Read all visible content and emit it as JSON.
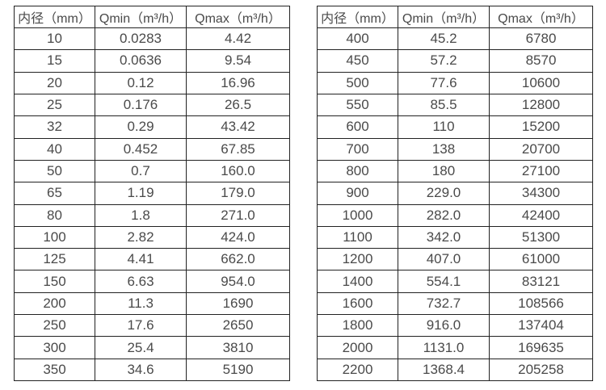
{
  "tables": [
    {
      "name": "flow-spec-small-diameters",
      "columns": [
        "内径（mm）",
        "Qmin（m³/h）",
        "Qmax（m³/h）"
      ],
      "rows": [
        [
          "10",
          "0.0283",
          "4.42"
        ],
        [
          "15",
          "0.0636",
          "9.54"
        ],
        [
          "20",
          "0.12",
          "16.96"
        ],
        [
          "25",
          "0.176",
          "26.5"
        ],
        [
          "32",
          "0.29",
          "43.42"
        ],
        [
          "40",
          "0.452",
          "67.85"
        ],
        [
          "50",
          "0.7",
          "160.0"
        ],
        [
          "65",
          "1.19",
          "179.0"
        ],
        [
          "80",
          "1.8",
          "271.0"
        ],
        [
          "100",
          "2.82",
          "424.0"
        ],
        [
          "125",
          "4.41",
          "662.0"
        ],
        [
          "150",
          "6.63",
          "954.0"
        ],
        [
          "200",
          "11.3",
          "1690"
        ],
        [
          "250",
          "17.6",
          "2650"
        ],
        [
          "300",
          "25.4",
          "3810"
        ],
        [
          "350",
          "34.6",
          "5190"
        ]
      ]
    },
    {
      "name": "flow-spec-large-diameters",
      "columns": [
        "内径（mm）",
        "Qmin（m³/h）",
        "Qmax（m³/h）"
      ],
      "rows": [
        [
          "400",
          "45.2",
          "6780"
        ],
        [
          "450",
          "57.2",
          "8570"
        ],
        [
          "500",
          "77.6",
          "10600"
        ],
        [
          "550",
          "85.5",
          "12800"
        ],
        [
          "600",
          "110",
          "15200"
        ],
        [
          "700",
          "138",
          "20700"
        ],
        [
          "800",
          "180",
          "27100"
        ],
        [
          "900",
          "229.0",
          "34300"
        ],
        [
          "1000",
          "282.0",
          "42400"
        ],
        [
          "1100",
          "342.0",
          "51300"
        ],
        [
          "1200",
          "407.0",
          "61000"
        ],
        [
          "1400",
          "554.1",
          "83121"
        ],
        [
          "1600",
          "732.7",
          "108566"
        ],
        [
          "1800",
          "916.0",
          "137404"
        ],
        [
          "2000",
          "1131.0",
          "169635"
        ],
        [
          "2200",
          "1368.4",
          "205258"
        ]
      ]
    }
  ]
}
